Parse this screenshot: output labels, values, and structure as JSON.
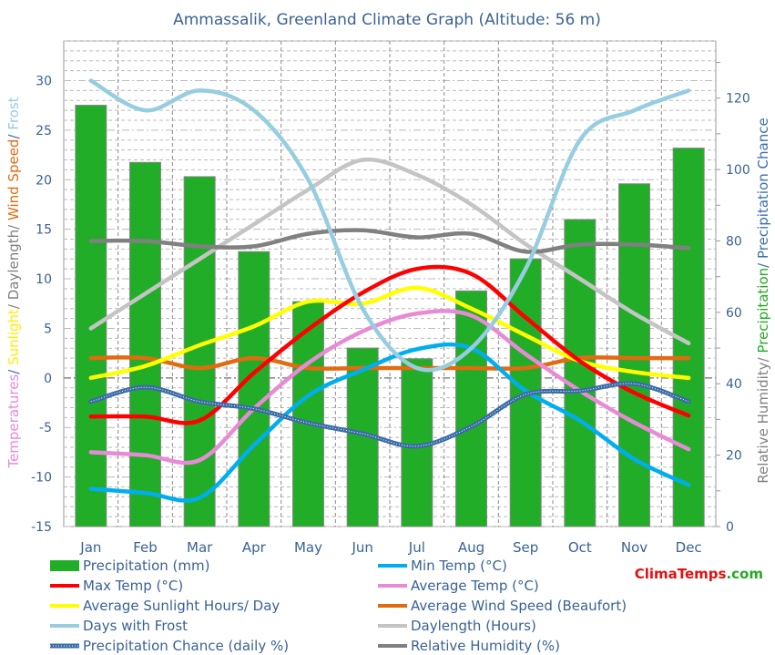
{
  "chart_data": {
    "type": "bar+line",
    "title": "Ammassalik, Greenland Climate Graph (Altitude: 56 m)",
    "categories": [
      "Jan",
      "Feb",
      "Mar",
      "Apr",
      "May",
      "Jun",
      "Jul",
      "Aug",
      "Sep",
      "Oct",
      "Nov",
      "Dec"
    ],
    "left_axis": {
      "label_parts": [
        {
          "text": "Temperatures",
          "color": "#e88adb"
        },
        {
          "text": "/ ",
          "color": "#3a6fb0"
        },
        {
          "text": "Sunlight",
          "color": "#ffee00"
        },
        {
          "text": "/ Daylength/ ",
          "color": "#808080"
        },
        {
          "text": "Wind Speed",
          "color": "#e26b10"
        },
        {
          "text": "/ ",
          "color": "#3a6fb0"
        },
        {
          "text": "Frost",
          "color": "#96cde0"
        }
      ],
      "ylim": [
        -15,
        34
      ],
      "ticks": [
        -15,
        -10,
        -5,
        0,
        5,
        10,
        15,
        20,
        25,
        30
      ]
    },
    "right_axis": {
      "label_parts": [
        {
          "text": "Relative Humidity/ ",
          "color": "#808080"
        },
        {
          "text": "Precipitation",
          "color": "#22aa22"
        },
        {
          "text": "/ Precipitation Chance",
          "color": "#3a6fb0"
        }
      ],
      "ylim": [
        0,
        136
      ],
      "ticks": [
        0,
        20,
        40,
        60,
        80,
        100,
        120
      ]
    },
    "grid": true,
    "series": [
      {
        "name": "Precipitation (mm)",
        "type": "bar",
        "axis": "right",
        "color": "#22ad29",
        "values": [
          118,
          102,
          98,
          77,
          63,
          50,
          47,
          66,
          75,
          86,
          96,
          106
        ]
      },
      {
        "name": "Min Temp (°C)",
        "type": "line",
        "axis": "left",
        "color": "#00aeef",
        "values": [
          -11.2,
          -11.6,
          -12.1,
          -6.8,
          -1.8,
          0.8,
          2.9,
          3.0,
          -1.3,
          -4.3,
          -8.2,
          -10.8
        ]
      },
      {
        "name": "Max Temp (°C)",
        "type": "line",
        "axis": "left",
        "color": "#ff0000",
        "values": [
          -3.9,
          -3.9,
          -4.3,
          0.5,
          4.9,
          8.6,
          11,
          10.5,
          6.1,
          1.7,
          -1.5,
          -3.8
        ]
      },
      {
        "name": "Average Temp (°C)",
        "type": "line",
        "axis": "left",
        "color": "#e88ad6",
        "values": [
          -7.5,
          -7.8,
          -8.3,
          -3.1,
          1.5,
          4.7,
          6.5,
          6.3,
          2.4,
          -1.3,
          -4.5,
          -7.2
        ]
      },
      {
        "name": "Average Sunlight Hours/ Day",
        "type": "line",
        "axis": "left",
        "color": "#ffff00",
        "values": [
          0,
          1.2,
          3.3,
          5.2,
          7.7,
          7.5,
          9.1,
          7,
          4.3,
          1.7,
          0.6,
          0
        ]
      },
      {
        "name": "Average Wind Speed (Beaufort)",
        "type": "line",
        "axis": "left",
        "color": "#e26b10",
        "values": [
          2,
          2,
          1,
          2,
          1,
          1,
          1,
          1,
          1,
          2,
          2,
          2
        ]
      },
      {
        "name": "Days with Frost",
        "type": "line",
        "axis": "left",
        "color": "#96cde0",
        "values": [
          30,
          27,
          29,
          27,
          20,
          7,
          1,
          3,
          11,
          24,
          27,
          29
        ]
      },
      {
        "name": "Daylength (Hours)",
        "type": "line",
        "axis": "left",
        "color": "#c4c4c4",
        "values": [
          5,
          8.5,
          12,
          15.5,
          19,
          22,
          20.5,
          17.5,
          13.5,
          10,
          6.5,
          3.5
        ]
      },
      {
        "name": "Precipitation Chance (daily %)",
        "type": "line",
        "axis": "right",
        "color": "#3a6ca8",
        "dotted": true,
        "values": [
          35,
          39,
          35,
          33,
          29,
          26,
          22.5,
          28,
          37,
          38,
          40,
          35
        ]
      },
      {
        "name": "Relative Humidity (%)",
        "type": "line",
        "axis": "right",
        "color": "#808080",
        "values": [
          80,
          80,
          78.5,
          78.5,
          82,
          83,
          81,
          82,
          77,
          79,
          79,
          78
        ]
      }
    ],
    "legend_position": "bottom",
    "watermark": "ClimaTemps.com"
  }
}
